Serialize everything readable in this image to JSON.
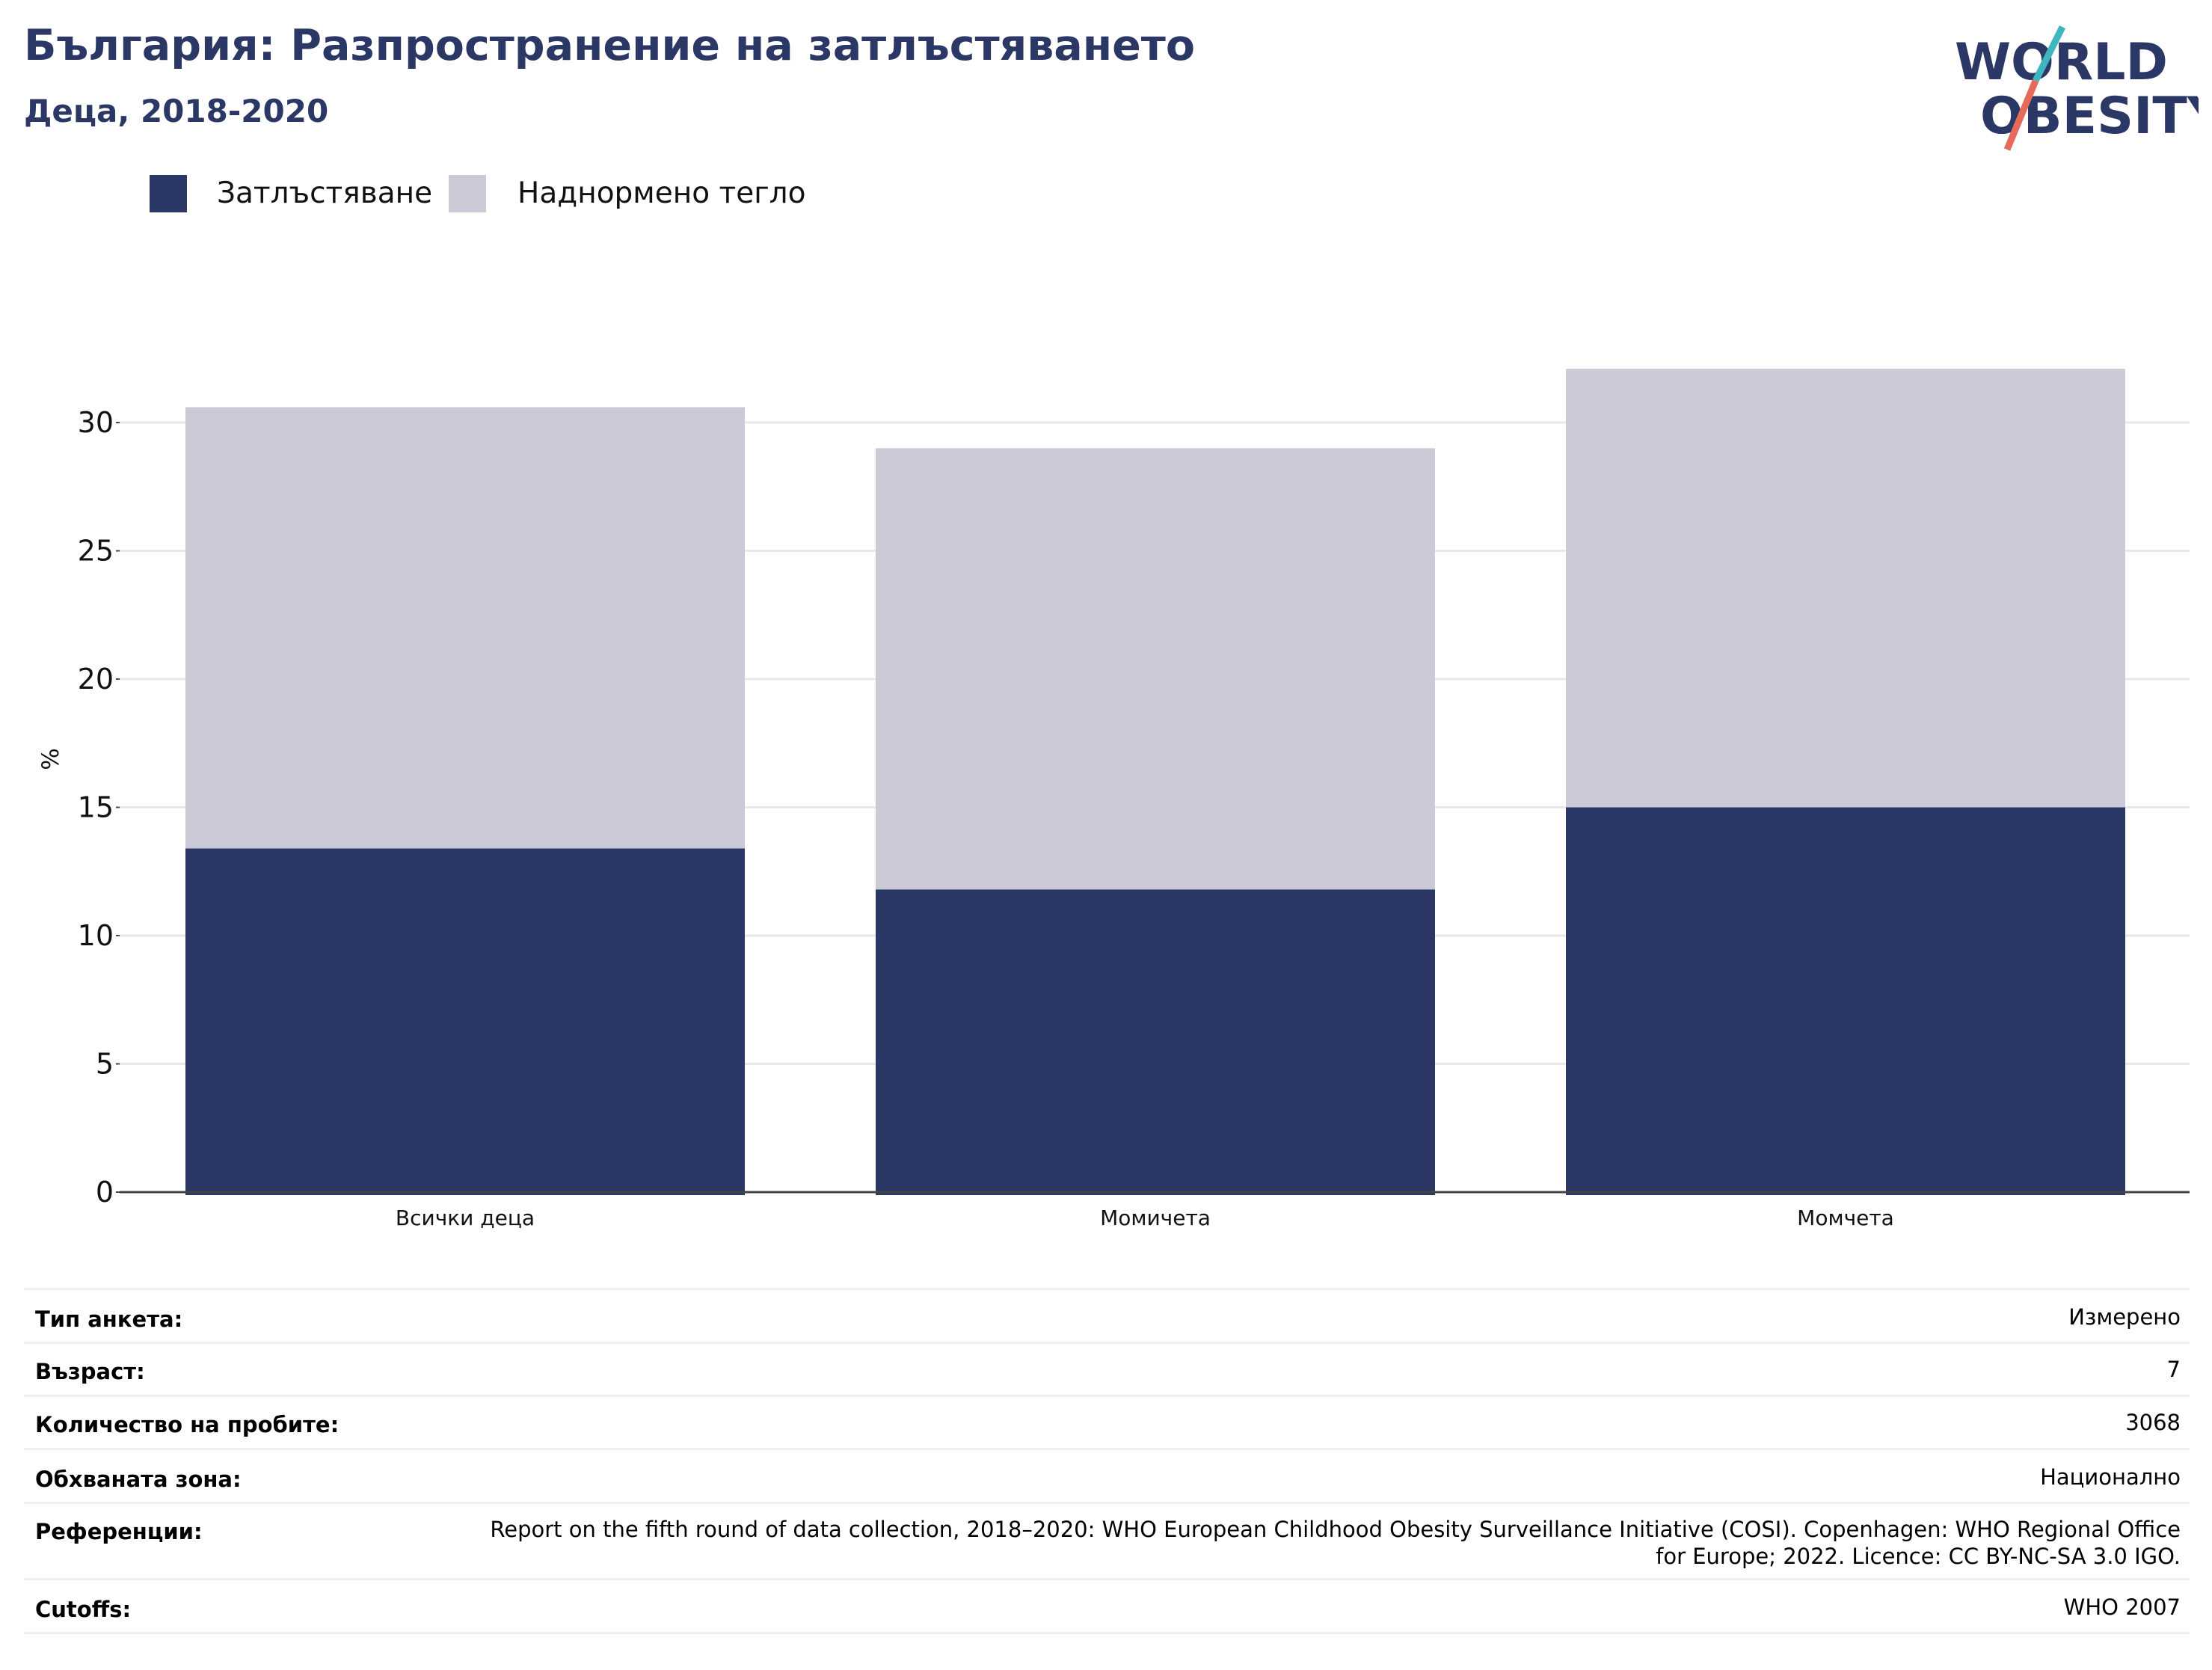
{
  "header": {
    "title": "България: Разпространение на затлъстяването",
    "subtitle": "Деца, 2018-2020"
  },
  "logo": {
    "line1": "WORLD",
    "line2": "OBESITY",
    "colors": {
      "text": "#2b3765",
      "slash_top": "#3fb5c0",
      "slash_bottom": "#e56a5a"
    }
  },
  "colors": {
    "obesity": "#2b3765",
    "overweight": "#cacbd7",
    "grid": "#e8e8e8",
    "axis": "#444444",
    "title": "#2b3765"
  },
  "chart_data": {
    "type": "bar",
    "stacked": true,
    "title": "България: Разпространение на затлъстяването",
    "subtitle": "Деца, 2018-2020",
    "xlabel": "",
    "ylabel": "%",
    "categories": [
      "Всички деца",
      "Момичета",
      "Момчета"
    ],
    "series": [
      {
        "name": "Затлъстяване",
        "values": [
          13.4,
          11.8,
          15.0
        ]
      },
      {
        "name": "Наднормено тегло",
        "values": [
          17.2,
          17.2,
          17.1
        ]
      }
    ],
    "yticks": [
      0,
      5,
      10,
      15,
      20,
      25,
      30
    ],
    "ylim": [
      0,
      32.1
    ],
    "grid": true,
    "legend": "top-left"
  },
  "meta": {
    "rows": [
      {
        "label": "Тип анкета:",
        "value": "Измерено"
      },
      {
        "label": "Възраст:",
        "value": "7"
      },
      {
        "label": "Количество на пробите:",
        "value": "3068"
      },
      {
        "label": "Обхваната зона:",
        "value": "Национално"
      },
      {
        "label": "Референции:",
        "value": "Report on the fifth round of data collection, 2018–2020: WHO European Childhood Obesity Surveillance Initiative (COSI). Copenhagen: WHO Regional Office for Europe; 2022. Licence: CC BY-NC-SA 3.0 IGO."
      },
      {
        "label": "Cutoffs:",
        "value": "WHO 2007"
      }
    ]
  }
}
